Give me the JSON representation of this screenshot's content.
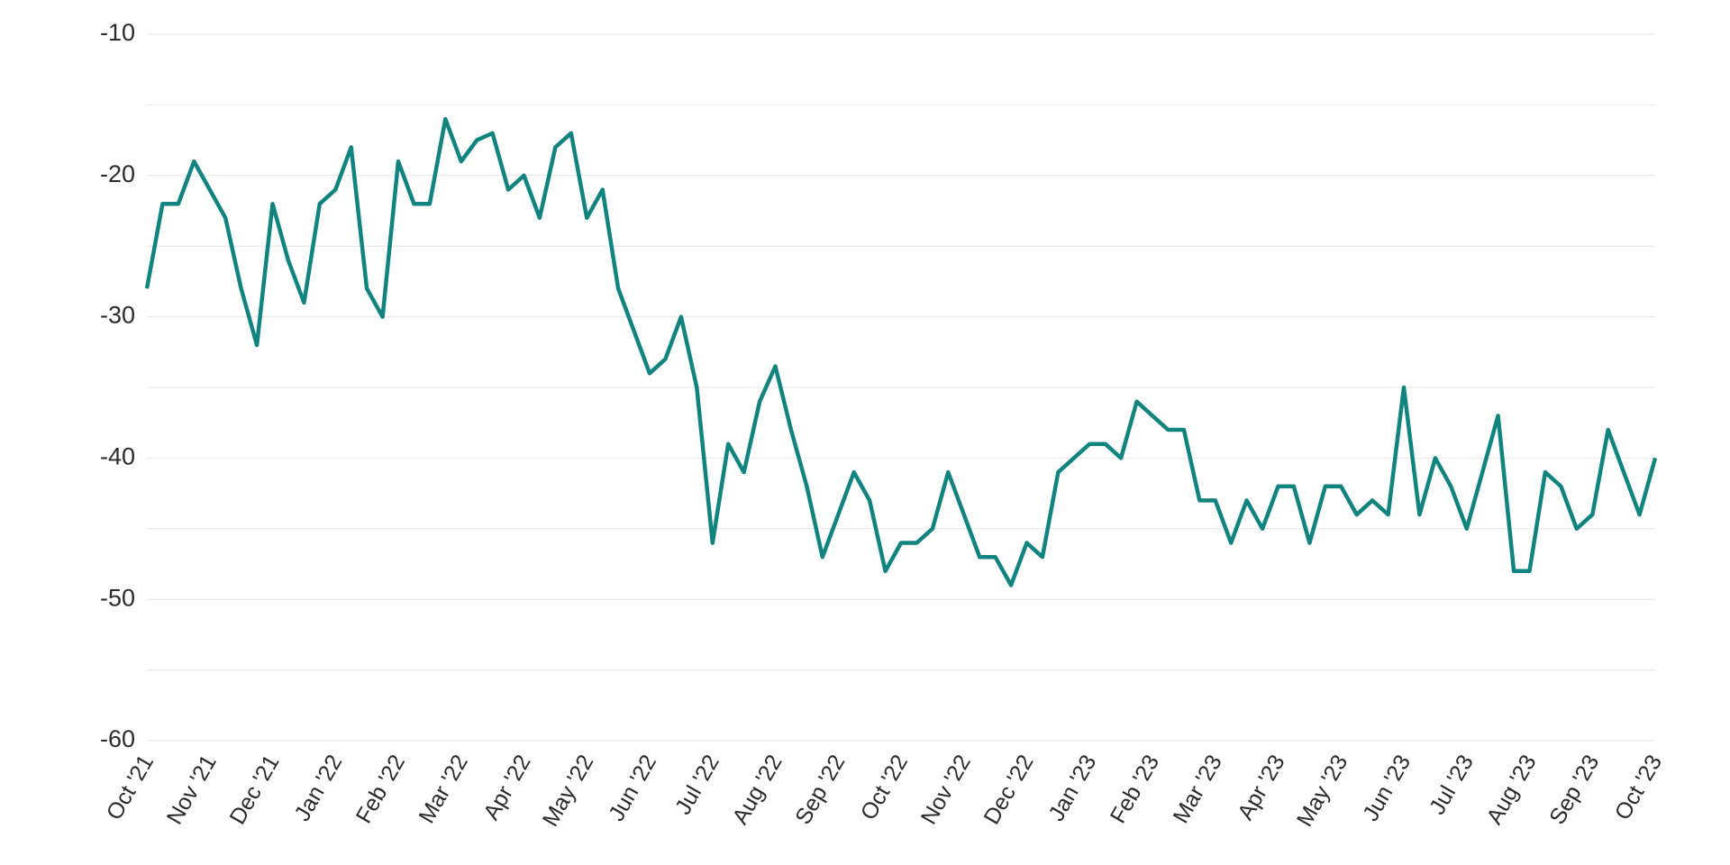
{
  "chart_data": {
    "type": "line",
    "categories": [
      "Oct '21",
      null,
      null,
      null,
      "Nov '21",
      null,
      null,
      null,
      "Dec '21",
      null,
      null,
      null,
      "Jan '22",
      null,
      null,
      null,
      "Feb '22",
      null,
      null,
      null,
      "Mar '22",
      null,
      null,
      null,
      "Apr '22",
      null,
      null,
      null,
      "May '22",
      null,
      null,
      null,
      "Jun '22",
      null,
      null,
      null,
      "Jul '22",
      null,
      null,
      null,
      "Aug '22",
      null,
      null,
      null,
      "Sep '22",
      null,
      null,
      null,
      "Oct '22",
      null,
      null,
      null,
      "Nov '22",
      null,
      null,
      null,
      "Dec '22",
      null,
      null,
      null,
      "Jan '23",
      null,
      null,
      null,
      "Feb '23",
      null,
      null,
      null,
      "Mar '23",
      null,
      null,
      null,
      "Apr '23",
      null,
      null,
      null,
      "May '23",
      null,
      null,
      null,
      "Jun '23",
      null,
      null,
      null,
      "Jul '23",
      null,
      null,
      null,
      "Aug '23",
      null,
      null,
      null,
      "Sep '23",
      null,
      null,
      null,
      "Oct '23"
    ],
    "series": [
      {
        "color": "#12847f",
        "values": [
          -28,
          -22,
          -22,
          -19,
          -21,
          -23,
          -28,
          -32,
          -22,
          -26,
          -29,
          -22,
          -21,
          -18,
          -28,
          -30,
          -19,
          -22,
          -22,
          -16,
          -19,
          -17.5,
          -17,
          -21,
          -20,
          -23,
          -18,
          -17,
          -23,
          -21,
          -28,
          -31,
          -34,
          -33,
          -30,
          -35,
          -46,
          -39,
          -41,
          -36,
          -33.5,
          -38,
          -42,
          -47,
          -44,
          -41,
          -43,
          -48,
          -46,
          -46,
          -45,
          -41,
          -44,
          -47,
          -47,
          -49,
          -46,
          -47,
          -41,
          -40,
          -39,
          -39,
          -40,
          -36,
          -37,
          -38,
          -38,
          -43,
          -43,
          -46,
          -43,
          -45,
          -42,
          -42,
          -46,
          -42,
          -42,
          -44,
          -43,
          -44,
          -35,
          -44,
          -40,
          -42,
          -45,
          -41,
          -37,
          -48,
          -48,
          -41,
          -42,
          -45,
          -44,
          -38,
          -41,
          -44,
          -40
        ]
      }
    ],
    "ylim": [
      -60,
      -10
    ],
    "yticks": [
      -60,
      -50,
      -40,
      -30,
      -20,
      -10
    ],
    "minor_yticks": [
      -55,
      -45,
      -35,
      -25,
      -15
    ],
    "grid": true
  }
}
